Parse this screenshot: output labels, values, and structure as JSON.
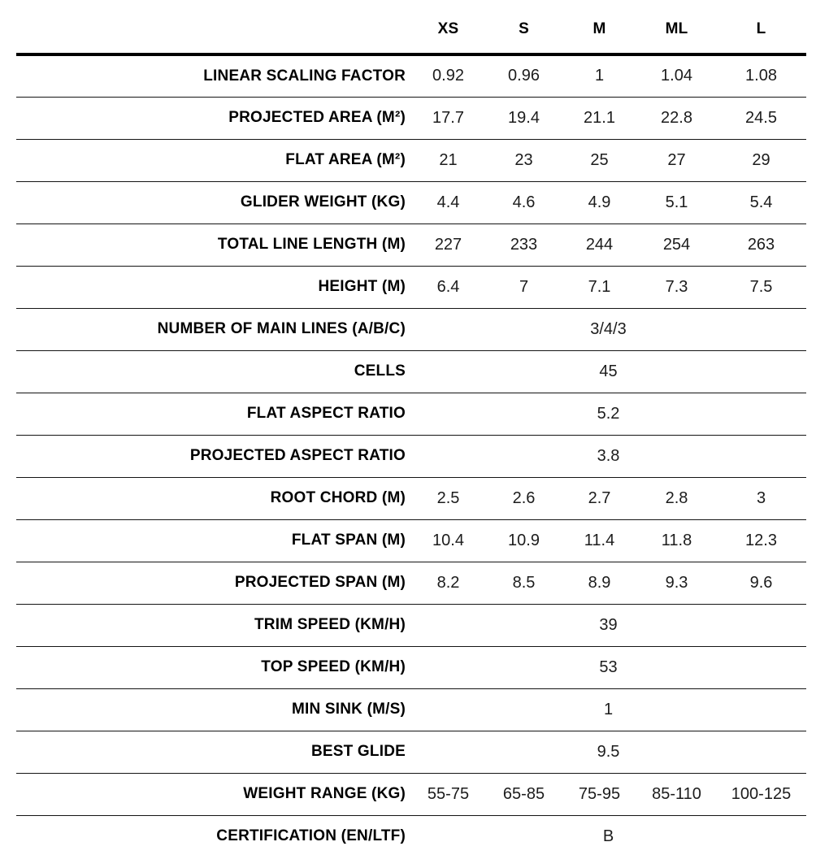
{
  "chart_data": {
    "type": "table",
    "title": "",
    "columns": [
      "XS",
      "S",
      "M",
      "ML",
      "L"
    ],
    "rows": [
      {
        "label": "LINEAR SCALING FACTOR",
        "values": [
          "0.92",
          "0.96",
          "1",
          "1.04",
          "1.08"
        ]
      },
      {
        "label": "PROJECTED AREA (M²)",
        "values": [
          "17.7",
          "19.4",
          "21.1",
          "22.8",
          "24.5"
        ]
      },
      {
        "label": "FLAT AREA (M²)",
        "values": [
          "21",
          "23",
          "25",
          "27",
          "29"
        ]
      },
      {
        "label": "GLIDER WEIGHT (KG)",
        "values": [
          "4.4",
          "4.6",
          "4.9",
          "5.1",
          "5.4"
        ]
      },
      {
        "label": "TOTAL LINE LENGTH (M)",
        "values": [
          "227",
          "233",
          "244",
          "254",
          "263"
        ]
      },
      {
        "label": "HEIGHT (M)",
        "values": [
          "6.4",
          "7",
          "7.1",
          "7.3",
          "7.5"
        ]
      },
      {
        "label": "NUMBER OF MAIN LINES (A/B/C)",
        "merged": "3/4/3"
      },
      {
        "label": "CELLS",
        "merged": "45"
      },
      {
        "label": "FLAT ASPECT RATIO",
        "merged": "5.2"
      },
      {
        "label": "PROJECTED ASPECT RATIO",
        "merged": "3.8"
      },
      {
        "label": "ROOT CHORD (M)",
        "values": [
          "2.5",
          "2.6",
          "2.7",
          "2.8",
          "3"
        ]
      },
      {
        "label": "FLAT SPAN (M)",
        "values": [
          "10.4",
          "10.9",
          "11.4",
          "11.8",
          "12.3"
        ]
      },
      {
        "label": "PROJECTED SPAN (M)",
        "values": [
          "8.2",
          "8.5",
          "8.9",
          "9.3",
          "9.6"
        ]
      },
      {
        "label": "TRIM SPEED (KM/H)",
        "merged": "39"
      },
      {
        "label": "TOP SPEED (KM/H)",
        "merged": "53"
      },
      {
        "label": "MIN SINK (M/S)",
        "merged": "1"
      },
      {
        "label": "BEST GLIDE",
        "merged": "9.5"
      },
      {
        "label": "WEIGHT RANGE (KG)",
        "values": [
          "55-75",
          "65-85",
          "75-95",
          "85-110",
          "100-125"
        ]
      },
      {
        "label": "CERTIFICATION (EN/LTF)",
        "merged": "B"
      }
    ],
    "layout": {
      "header_rule_color": "#000000",
      "row_rule_color": "#141414",
      "background": "#ffffff",
      "label_column_align": "right",
      "value_column_align": "center"
    }
  }
}
